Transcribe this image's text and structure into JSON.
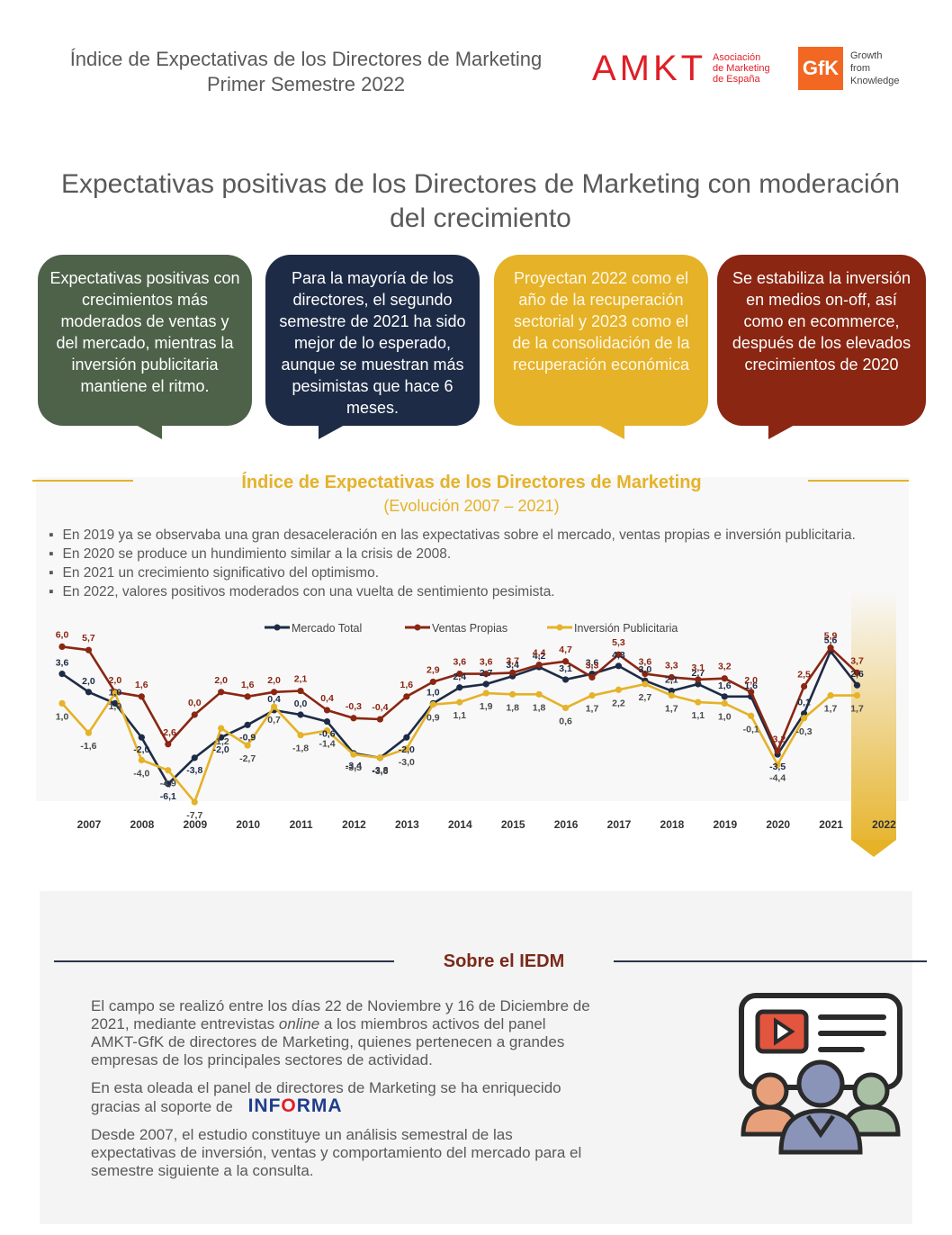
{
  "header": {
    "title_line1": "Índice de Expectativas de los Directores de Marketing",
    "title_line2": "Primer Semestre 2022",
    "amkt_logo": "AMKT",
    "amkt_sub1": "Asociación",
    "amkt_sub2": "de Marketing",
    "amkt_sub3": "de España",
    "gfk_logo": "GfK",
    "gfk_sub1": "Growth",
    "gfk_sub2": "from",
    "gfk_sub3": "Knowledge"
  },
  "main_title_line1": "Expectativas positivas de los Directores de Marketing con moderación",
  "main_title_line2": "del crecimiento",
  "bubbles": [
    {
      "text": "Expectativas positivas con crecimientos más moderados de ventas y del mercado, mientras la inversión publicitaria mantiene el ritmo.",
      "color": "#4d6249"
    },
    {
      "text": "Para la mayoría de los directores, el segundo semestre de 2021 ha sido mejor de lo esperado, aunque se muestran más pesimistas que hace 6 meses.",
      "color": "#1d2b46"
    },
    {
      "text": "Proyectan 2022 como el año de la recuperación sectorial y 2023 como el de la consolidación de la recuperación económica",
      "color": "#e5b228"
    },
    {
      "text": "Se estabiliza la inversión en medios on-off, así como en ecommerce, después de los elevados crecimientos de 2020",
      "color": "#8a2612"
    }
  ],
  "chart_section": {
    "title": "Índice de Expectativas de los Directores de Marketing",
    "subtitle": "(Evolución 2007 – 2021)",
    "bullets": [
      "En 2019 ya se observaba una gran desaceleración en las expectativas sobre el mercado, ventas propias e inversión publicitaria.",
      "En 2020 se produce un hundimiento similar a la crisis de 2008.",
      "En 2021 un crecimiento significativo del optimismo.",
      "En 2022, valores positivos moderados con una vuelta de sentimiento pesimista."
    ]
  },
  "chart_data": {
    "type": "line",
    "x": [
      "2007-1",
      "2007-2",
      "2008-1",
      "2008-2",
      "2009-1",
      "2009-2",
      "2010-1",
      "2010-2",
      "2011-1",
      "2011-2",
      "2012-1",
      "2012-2",
      "2013-1",
      "2013-2",
      "2014-1",
      "2014-2",
      "2015-1",
      "2015-2",
      "2016-1",
      "2016-2",
      "2017-1",
      "2017-2",
      "2018-1",
      "2018-2",
      "2019-1",
      "2019-2",
      "2020-1",
      "2020-2",
      "2021-1",
      "2021-2",
      "2022-1"
    ],
    "year_labels": [
      "2007",
      "2008",
      "2009",
      "2010",
      "2011",
      "2012",
      "2013",
      "2014",
      "2015",
      "2016",
      "2017",
      "2018",
      "2019",
      "2020",
      "2021",
      "2022"
    ],
    "series": [
      {
        "name": "Mercado Total",
        "color": "#1d2b46",
        "values": [
          3.6,
          2.0,
          1.0,
          -2.0,
          -6.1,
          -3.8,
          -2.0,
          -0.9,
          0.4,
          0.0,
          -0.6,
          -3.4,
          -3.8,
          -2.0,
          1.0,
          2.4,
          2.7,
          3.4,
          4.2,
          3.1,
          3.6,
          4.3,
          3.0,
          2.1,
          2.7,
          1.6,
          1.6,
          -3.5,
          0.1,
          5.6,
          2.6
        ]
      },
      {
        "name": "Ventas Propias",
        "color": "#8a2612",
        "values": [
          6.0,
          5.7,
          2.0,
          1.6,
          -2.6,
          0.0,
          2.0,
          1.6,
          2.0,
          2.1,
          0.4,
          -0.3,
          -0.4,
          1.6,
          2.9,
          3.6,
          3.6,
          3.7,
          4.4,
          4.7,
          3.3,
          5.3,
          3.6,
          3.3,
          3.1,
          3.2,
          2.0,
          -3.2,
          2.5,
          5.9,
          3.7
        ]
      },
      {
        "name": "Inversión Publicitaria",
        "color": "#e5b228",
        "values": [
          1.0,
          -1.6,
          1.9,
          -4.0,
          -4.9,
          -7.7,
          -1.2,
          -2.7,
          0.7,
          -1.8,
          -1.4,
          -3.5,
          -3.8,
          -3.0,
          0.9,
          1.1,
          1.9,
          1.8,
          1.8,
          0.6,
          1.7,
          2.2,
          2.7,
          1.7,
          1.1,
          1.0,
          -0.1,
          -4.4,
          -0.3,
          1.7,
          1.7
        ]
      }
    ],
    "legend_placement": "top-center",
    "grid": false
  },
  "iedm": {
    "title": "Sobre el IEDM",
    "p1_a": "El campo se realizó entre los días 22 de Noviembre y 16 de Diciembre de",
    "p1_b": "2021, mediante entrevistas",
    "p1_online": "online",
    "p1_c": "a los miembros activos del panel",
    "p1_d": "AMKT-GfK de directores de Marketing, quienes pertenecen a grandes",
    "p1_e": "empresas de los principales sectores de actividad.",
    "p2_a": "En esta oleada el panel de directores de Marketing se ha enriquecido",
    "p2_b": "gracias al soporte de",
    "informa_a": "INF",
    "informa_dot": "O",
    "informa_b": "RMA",
    "p3_a": "Desde 2007, el estudio constituye un análisis semestral de las",
    "p3_b": "expectativas de inversión, ventas y comportamiento del mercado para el",
    "p3_c": "semestre siguiente a la consulta."
  }
}
